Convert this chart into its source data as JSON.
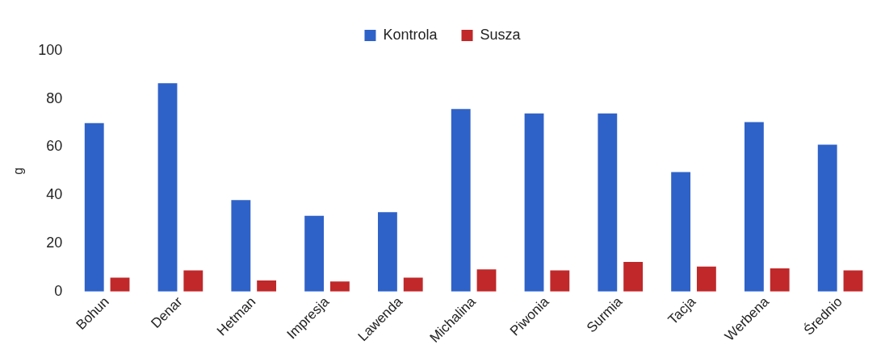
{
  "chart_data": {
    "type": "bar",
    "ylabel": "g",
    "categories": [
      "Bohun",
      "Denar",
      "Hetman",
      "Impresja",
      "Lawenda",
      "Michalina",
      "Piwonia",
      "Surmia",
      "Tacja",
      "Werbena",
      "Średnio"
    ],
    "series": [
      {
        "name": "Kontrola",
        "color": "#2f62c8",
        "values": [
          70,
          86.5,
          38,
          31.5,
          33,
          75.8,
          74,
          74,
          49.6,
          70.4,
          61
        ]
      },
      {
        "name": "Susza",
        "color": "#c0282a",
        "values": [
          5.8,
          8.8,
          4.6,
          4.2,
          5.8,
          9.2,
          8.8,
          12.3,
          10.4,
          9.6,
          8.8
        ]
      }
    ],
    "ylim": [
      0,
      100
    ],
    "yticks": [
      0,
      20,
      40,
      60,
      80,
      100
    ],
    "grid": false,
    "legend": "top"
  }
}
